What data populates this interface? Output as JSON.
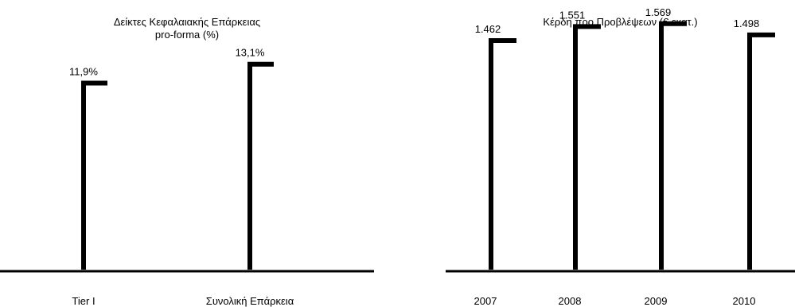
{
  "chart_data": [
    {
      "type": "bar",
      "title": [
        "Δείκτες Κεφαλαιακής Επάρκειας",
        "pro-forma (%)"
      ],
      "categories": [
        "Tier I",
        "Συνολική Επάρκεια"
      ],
      "values": [
        11.9,
        13.1
      ],
      "value_labels": [
        "11,9%",
        "13,1%"
      ],
      "xlabel": "",
      "ylabel": "",
      "ylim": [
        0,
        15.5
      ],
      "grid": false,
      "legend": "none",
      "colors": {
        "bars": "#000000",
        "axis": "#000000"
      }
    },
    {
      "type": "bar",
      "title": [
        "Κέρδη προ Προβλέψεων (€ εκατ.)"
      ],
      "categories": [
        "2007",
        "2008",
        "2009",
        "2010"
      ],
      "values": [
        1462,
        1551,
        1569,
        1498
      ],
      "value_labels": [
        "1.462",
        "1.551",
        "1.569",
        "1.498"
      ],
      "xlabel": "",
      "ylabel": "",
      "ylim": [
        0,
        1830
      ],
      "grid": false,
      "legend": "none",
      "colors": {
        "bars": "#000000",
        "axis": "#000000"
      }
    }
  ]
}
